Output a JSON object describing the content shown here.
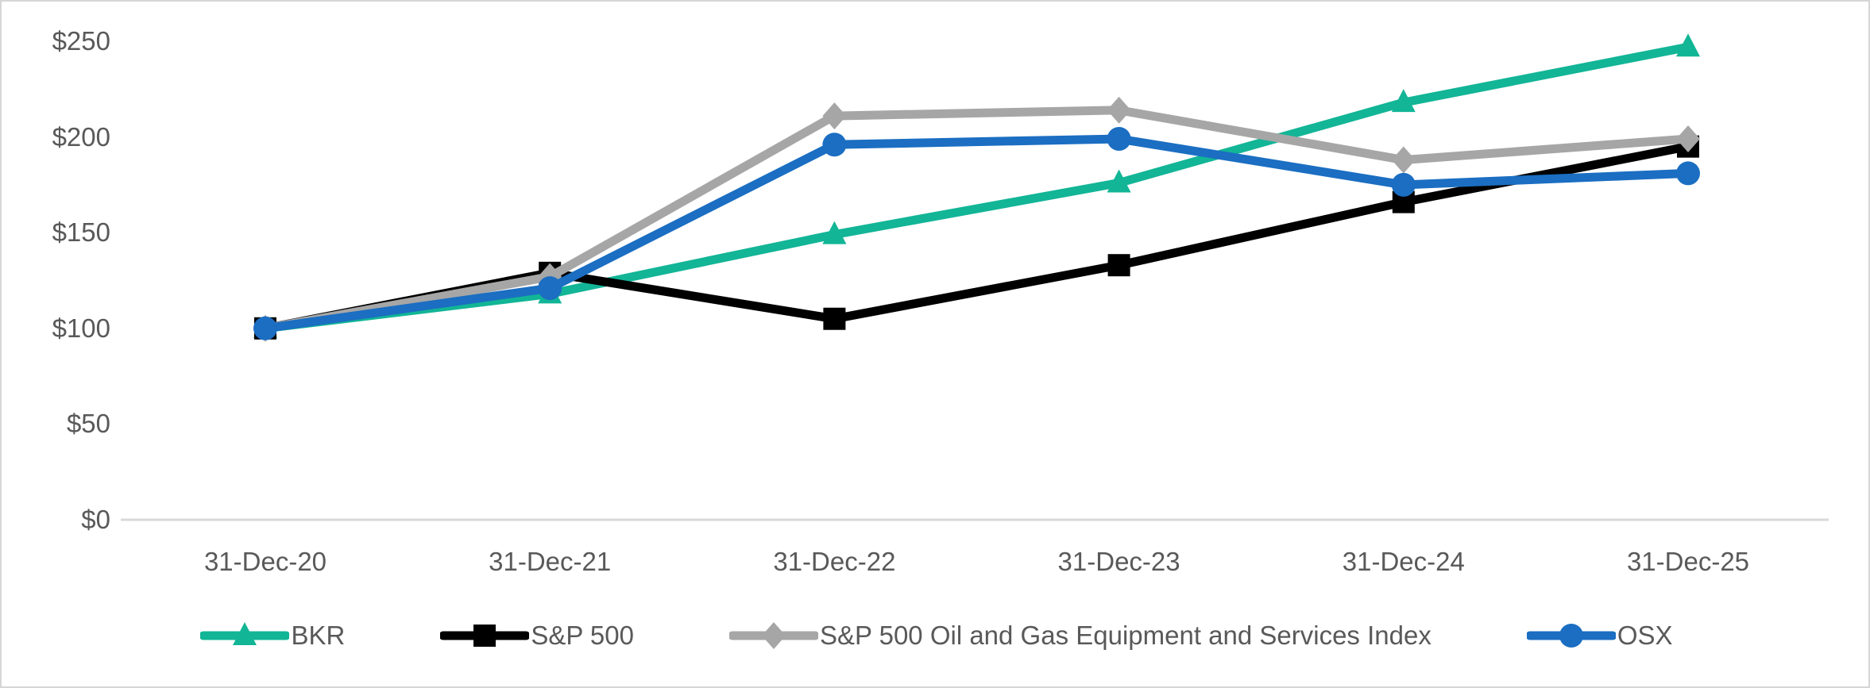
{
  "chart_data": {
    "type": "line",
    "title": "",
    "xlabel": "",
    "ylabel": "",
    "categories": [
      "31-Dec-20",
      "31-Dec-21",
      "31-Dec-22",
      "31-Dec-23",
      "31-Dec-24",
      "31-Dec-25"
    ],
    "series": [
      {
        "name": "BKR",
        "color": "#12B596",
        "marker": "triangle",
        "values": [
          100,
          118,
          149,
          176,
          218,
          247
        ]
      },
      {
        "name": "S&P 500",
        "color": "#000000",
        "marker": "square",
        "values": [
          100,
          129,
          105,
          133,
          166,
          195
        ]
      },
      {
        "name": "S&P 500 Oil and Gas Equipment and Services Index",
        "color": "#A6A6A6",
        "marker": "diamond",
        "values": [
          100,
          127,
          211,
          214,
          188,
          199
        ]
      },
      {
        "name": "OSX",
        "color": "#1B6EC2",
        "marker": "circle",
        "values": [
          100,
          121,
          196,
          199,
          175,
          181
        ]
      }
    ],
    "y_ticks": [
      {
        "label": "$250",
        "value": 250
      },
      {
        "label": "$200",
        "value": 200
      },
      {
        "label": "$150",
        "value": 150
      },
      {
        "label": "$100",
        "value": 100
      },
      {
        "label": "$50",
        "value": 50
      },
      {
        "label": "$0",
        "value": 0
      }
    ],
    "ylim": [
      0,
      250
    ],
    "grid": false,
    "legend_position": "bottom"
  },
  "colors": {
    "text": "#595959",
    "axis_line": "#D9D9D9",
    "border": "#D6D6D6",
    "background": "#FFFFFF"
  }
}
